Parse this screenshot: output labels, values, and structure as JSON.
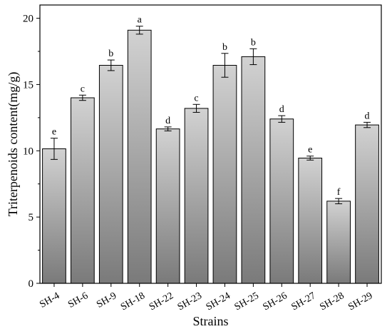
{
  "chart_data": {
    "type": "bar",
    "xlabel": "Strains",
    "ylabel": "Triterpenoids content(mg/g)",
    "ylim": [
      0,
      21
    ],
    "yticks": [
      0,
      5,
      10,
      15,
      20
    ],
    "grid": false,
    "legend": "none",
    "bar_fill": {
      "top": "#d2d2d2",
      "bottom": "#7a7a7a",
      "stroke": "#000000"
    },
    "categories": [
      "SH-4",
      "SH-6",
      "SH-9",
      "SH-18",
      "SH-22",
      "SH-23",
      "SH-24",
      "SH-25",
      "SH-26",
      "SH-27",
      "SH-28",
      "SH-29"
    ],
    "values": [
      10.15,
      14.0,
      16.45,
      19.1,
      11.65,
      13.2,
      16.45,
      17.1,
      12.4,
      9.45,
      6.2,
      11.95
    ],
    "errors": [
      0.8,
      0.2,
      0.4,
      0.3,
      0.15,
      0.3,
      0.9,
      0.6,
      0.25,
      0.15,
      0.2,
      0.2
    ],
    "labels": [
      "e",
      "c",
      "b",
      "a",
      "d",
      "c",
      "b",
      "b",
      "d",
      "e",
      "f",
      "d"
    ]
  }
}
